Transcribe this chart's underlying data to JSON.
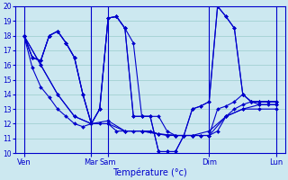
{
  "xlabel": "Température (°c)",
  "background_color": "#cce8f0",
  "line_color": "#0000cc",
  "grid_color": "#99cccc",
  "ylim": [
    10,
    20
  ],
  "yticks": [
    10,
    11,
    12,
    13,
    14,
    15,
    16,
    17,
    18,
    19,
    20
  ],
  "xlim": [
    0,
    32
  ],
  "xtick_positions": [
    1,
    9,
    11,
    23,
    31
  ],
  "xtick_labels": [
    "Ven",
    "Mar",
    "Sam",
    "Dim",
    "Lun"
  ],
  "vline_positions": [
    1,
    9,
    11,
    23,
    31
  ],
  "series": [
    [
      1,
      18,
      2,
      15.8,
      3,
      14.5,
      4,
      13.8,
      5,
      13.0,
      6,
      12.5,
      7,
      12.0,
      8,
      11.8,
      9,
      12.0,
      10,
      12.0,
      11,
      12.0,
      12,
      11.5,
      13,
      11.5,
      14,
      11.5,
      15,
      11.5,
      16,
      11.5,
      17,
      11.3,
      18,
      11.2,
      19,
      11.2,
      20,
      11.2,
      21,
      11.2,
      22,
      11.2,
      23,
      11.2,
      24,
      11.5,
      25,
      12.5,
      26,
      13.0,
      27,
      13.3,
      28,
      13.5,
      29,
      13.5,
      30,
      13.5,
      31,
      13.5
    ],
    [
      1,
      18,
      3,
      16.0,
      5,
      14.0,
      7,
      12.5,
      9,
      12.0,
      11,
      12.0,
      13,
      11.5,
      15,
      11.5,
      17,
      11.3,
      19,
      11.2,
      21,
      11.2,
      23,
      11.2,
      25,
      12.5,
      27,
      13.0,
      29,
      13.3,
      31,
      13.3
    ],
    [
      1,
      18,
      3,
      16.0,
      5,
      14.0,
      7,
      12.5,
      9,
      12.0,
      11,
      12.2,
      13,
      11.5,
      15,
      11.5,
      17,
      11.3,
      19,
      11.2,
      21,
      11.2,
      23,
      11.5,
      25,
      12.5,
      27,
      13.0,
      29,
      13.0,
      31,
      13.0
    ],
    [
      1,
      18,
      2,
      16.5,
      3,
      16.3,
      4,
      18.0,
      5,
      18.3,
      6,
      17.5,
      7,
      16.5,
      8,
      14.0,
      9,
      12.0,
      10,
      13.0,
      11,
      19.2,
      12,
      19.3,
      13,
      18.5,
      14,
      17.5,
      15,
      12.5,
      16,
      12.5,
      17,
      12.5,
      18,
      11.5,
      19,
      11.2,
      20,
      11.2,
      21,
      11.2,
      22,
      11.2,
      23,
      11.2,
      24,
      13.0,
      25,
      13.2,
      26,
      13.5,
      27,
      14.0,
      28,
      13.5,
      29,
      13.5,
      30,
      13.5,
      31,
      13.5
    ],
    [
      1,
      18,
      2,
      16.5,
      3,
      16.3,
      4,
      18.0,
      5,
      18.3,
      6,
      17.5,
      7,
      16.5,
      8,
      14.0,
      9,
      12.0,
      10,
      13.0,
      11,
      19.2,
      12,
      19.3,
      13,
      18.5,
      14,
      12.5,
      15,
      12.5,
      16,
      12.5,
      17,
      10.1,
      18,
      10.1,
      19,
      10.1,
      20,
      11.2,
      21,
      13.0,
      22,
      13.2,
      23,
      13.5,
      24,
      20.0,
      25,
      19.3,
      26,
      18.5,
      27,
      14.0,
      28,
      13.5,
      29,
      13.5,
      30,
      13.5,
      31,
      13.5
    ],
    [
      1,
      18,
      2,
      16.5,
      3,
      16.3,
      4,
      18.0,
      5,
      18.3,
      6,
      17.5,
      7,
      16.5,
      8,
      14.0,
      9,
      12.0,
      10,
      13.0,
      11,
      19.2,
      12,
      19.3,
      13,
      18.5,
      14,
      12.5,
      15,
      12.5,
      16,
      12.5,
      17,
      10.1,
      18,
      10.1,
      19,
      10.1,
      20,
      11.2,
      21,
      13.0,
      22,
      13.2,
      23,
      13.5,
      24,
      20.0,
      25,
      19.3,
      26,
      18.5,
      27,
      14.0,
      28,
      13.5,
      29,
      13.3,
      30,
      13.3,
      31,
      13.3
    ]
  ]
}
